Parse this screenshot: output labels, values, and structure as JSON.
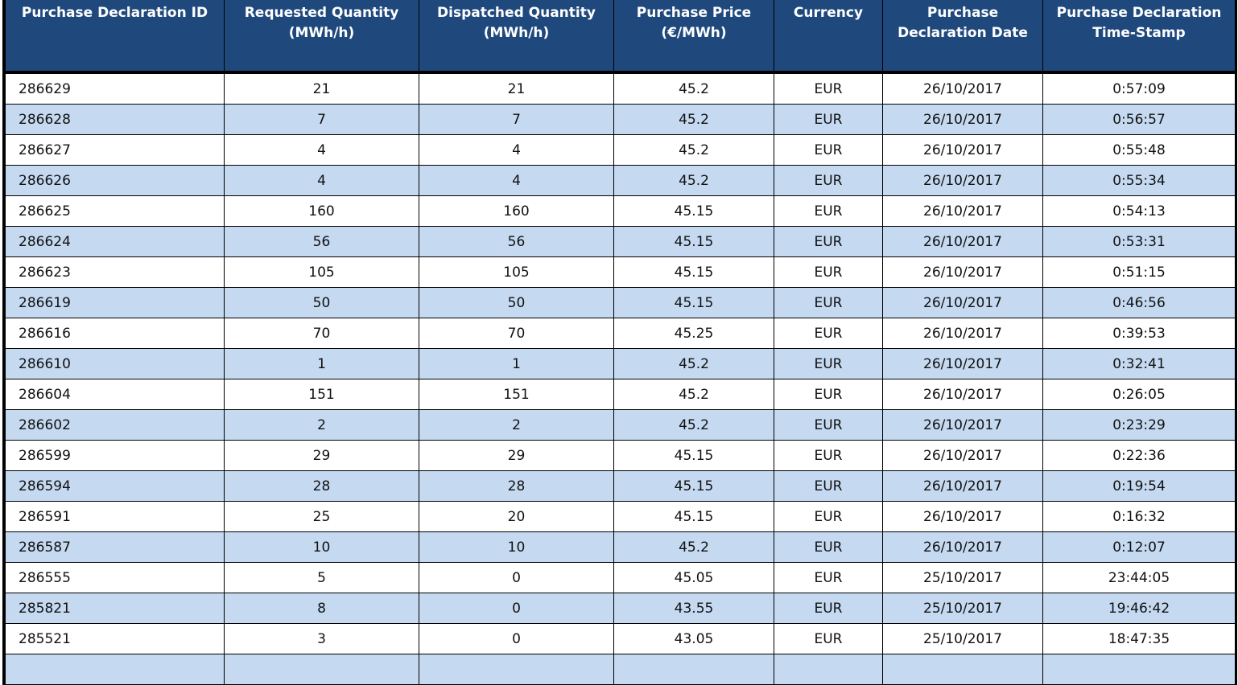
{
  "table": {
    "header": [
      "Purchase Declaration ID",
      "Requested Quantity\n(MWh/h)",
      "Dispatched Quantity\n(MWh/h)",
      "Purchase Price\n(€/MWh)",
      "Currency",
      "Purchase\nDeclaration Date",
      "Purchase Declaration\nTime-Stamp"
    ],
    "rows": [
      [
        286629,
        21,
        21,
        45.2,
        "EUR",
        "26/10/2017",
        "0:57:09"
      ],
      [
        286628,
        7,
        7,
        45.2,
        "EUR",
        "26/10/2017",
        "0:56:57"
      ],
      [
        286627,
        4,
        4,
        45.2,
        "EUR",
        "26/10/2017",
        "0:55:48"
      ],
      [
        286626,
        4,
        4,
        45.2,
        "EUR",
        "26/10/2017",
        "0:55:34"
      ],
      [
        286625,
        160,
        160,
        45.15,
        "EUR",
        "26/10/2017",
        "0:54:13"
      ],
      [
        286624,
        56,
        56,
        45.15,
        "EUR",
        "26/10/2017",
        "0:53:31"
      ],
      [
        286623,
        105,
        105,
        45.15,
        "EUR",
        "26/10/2017",
        "0:51:15"
      ],
      [
        286619,
        50,
        50,
        45.15,
        "EUR",
        "26/10/2017",
        "0:46:56"
      ],
      [
        286616,
        70,
        70,
        45.25,
        "EUR",
        "26/10/2017",
        "0:39:53"
      ],
      [
        286610,
        1,
        1,
        45.2,
        "EUR",
        "26/10/2017",
        "0:32:41"
      ],
      [
        286604,
        151,
        151,
        45.2,
        "EUR",
        "26/10/2017",
        "0:26:05"
      ],
      [
        286602,
        2,
        2,
        45.2,
        "EUR",
        "26/10/2017",
        "0:23:29"
      ],
      [
        286599,
        29,
        29,
        45.15,
        "EUR",
        "26/10/2017",
        "0:22:36"
      ],
      [
        286594,
        28,
        28,
        45.15,
        "EUR",
        "26/10/2017",
        "0:19:54"
      ],
      [
        286591,
        25,
        20,
        45.15,
        "EUR",
        "26/10/2017",
        "0:16:32"
      ],
      [
        286587,
        10,
        10,
        45.2,
        "EUR",
        "26/10/2017",
        "0:12:07"
      ],
      [
        286555,
        5,
        0,
        45.05,
        "EUR",
        "25/10/2017",
        "23:44:05"
      ],
      [
        285821,
        8,
        0,
        43.55,
        "EUR",
        "25/10/2017",
        "19:46:42"
      ],
      [
        285521,
        3,
        0,
        43.05,
        "EUR",
        "25/10/2017",
        "18:47:35"
      ]
    ]
  }
}
